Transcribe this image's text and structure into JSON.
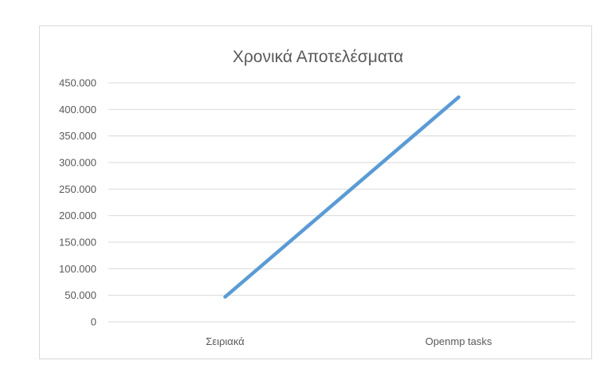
{
  "chart_data": {
    "type": "line",
    "title": "Χρονικά Αποτελέσματα",
    "xlabel": "",
    "ylabel": "",
    "categories": [
      "Σειριακά",
      "Openmp tasks"
    ],
    "series": [
      {
        "values": [
          47000,
          423000
        ],
        "color": "#5b9bd5"
      }
    ],
    "ylim": [
      0,
      450000
    ],
    "yticks": [
      0,
      50000,
      100000,
      150000,
      200000,
      250000,
      300000,
      350000,
      400000,
      450000
    ],
    "ytick_labels": [
      "0",
      "50.000",
      "100.000",
      "150.000",
      "200.000",
      "250.000",
      "300.000",
      "350.000",
      "400.000",
      "450.000"
    ],
    "grid": true,
    "legend": "none"
  }
}
